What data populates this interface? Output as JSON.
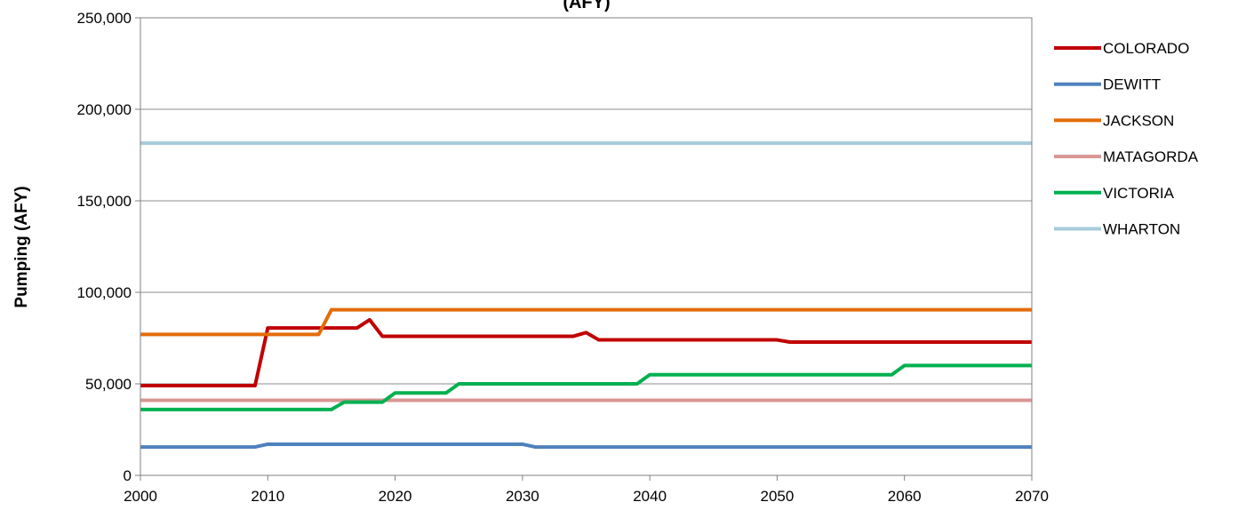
{
  "chart_data": {
    "type": "line",
    "title": "(AFY)",
    "xlabel": "",
    "ylabel": "Pumping (AFY)",
    "xlim": [
      2000,
      2070
    ],
    "ylim": [
      0,
      250000
    ],
    "x_ticks": [
      2000,
      2010,
      2020,
      2030,
      2040,
      2050,
      2060,
      2070
    ],
    "y_ticks": [
      0,
      50000,
      100000,
      150000,
      200000,
      250000
    ],
    "x_tick_labels": [
      "2000",
      "2010",
      "2020",
      "2030",
      "2040",
      "2050",
      "2060",
      "2070"
    ],
    "y_tick_labels": [
      "0",
      "50,000",
      "100,000",
      "150,000",
      "200,000",
      "250,000"
    ],
    "grid": "horizontal",
    "legend": "right",
    "series": [
      {
        "name": "COLORADO",
        "color": "#c00000",
        "points": [
          [
            2000,
            49000
          ],
          [
            2009,
            49000
          ],
          [
            2010,
            80500
          ],
          [
            2017,
            80500
          ],
          [
            2018,
            85000
          ],
          [
            2019,
            76000
          ],
          [
            2034,
            76000
          ],
          [
            2035,
            78000
          ],
          [
            2036,
            74000
          ],
          [
            2050,
            74000
          ],
          [
            2051,
            72800
          ],
          [
            2070,
            72800
          ]
        ]
      },
      {
        "name": "DEWITT",
        "color": "#4f81bd",
        "points": [
          [
            2000,
            15500
          ],
          [
            2009,
            15500
          ],
          [
            2010,
            17000
          ],
          [
            2030,
            17000
          ],
          [
            2031,
            15500
          ],
          [
            2070,
            15500
          ]
        ]
      },
      {
        "name": "JACKSON",
        "color": "#e36c09",
        "points": [
          [
            2000,
            77000
          ],
          [
            2014,
            77000
          ],
          [
            2015,
            90500
          ],
          [
            2070,
            90500
          ]
        ]
      },
      {
        "name": "MATAGORDA",
        "color": "#d99694",
        "points": [
          [
            2000,
            41000
          ],
          [
            2070,
            41000
          ]
        ]
      },
      {
        "name": "VICTORIA",
        "color": "#00b050",
        "points": [
          [
            2000,
            36000
          ],
          [
            2015,
            36000
          ],
          [
            2016,
            40000
          ],
          [
            2019,
            40000
          ],
          [
            2020,
            45000
          ],
          [
            2024,
            45000
          ],
          [
            2025,
            50000
          ],
          [
            2039,
            50000
          ],
          [
            2040,
            55000
          ],
          [
            2059,
            55000
          ],
          [
            2060,
            60000
          ],
          [
            2070,
            60000
          ]
        ]
      },
      {
        "name": "WHARTON",
        "color": "#a6cbda",
        "points": [
          [
            2000,
            181500
          ],
          [
            2070,
            181500
          ]
        ]
      }
    ]
  }
}
